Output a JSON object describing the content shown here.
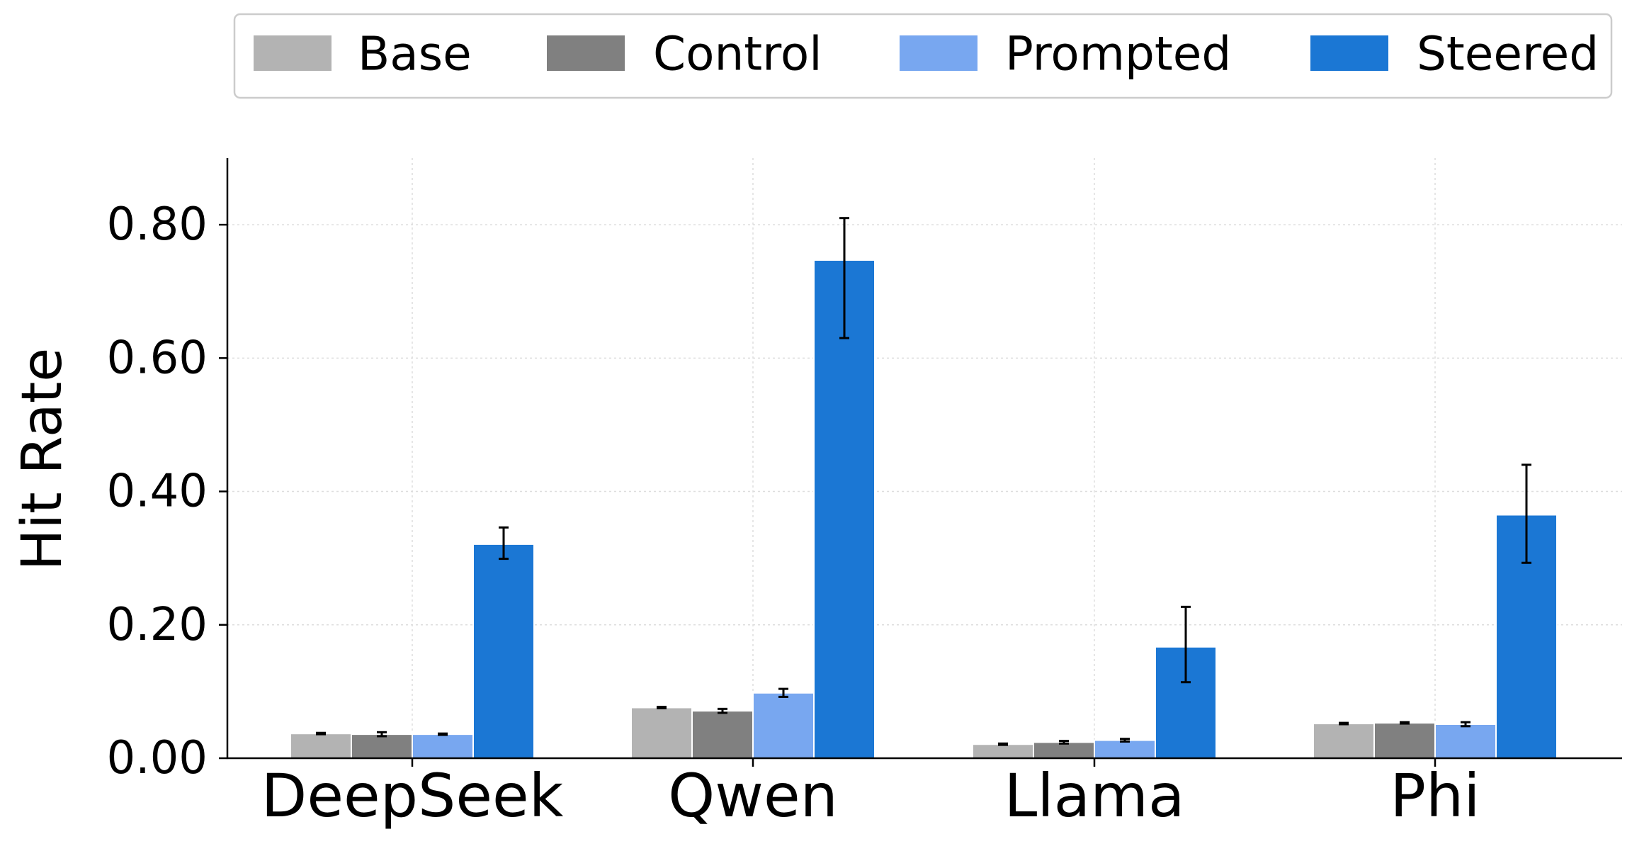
{
  "chart_data": {
    "type": "bar",
    "title": "",
    "xlabel": "",
    "ylabel": "Hit Rate",
    "ylim": [
      0,
      0.9
    ],
    "yticks": [
      0.0,
      0.2,
      0.4,
      0.6,
      0.8
    ],
    "ytick_labels": [
      "0.00",
      "0.20",
      "0.40",
      "0.60",
      "0.80"
    ],
    "grid": true,
    "legend_position": "top",
    "categories": [
      "DeepSeek",
      "Qwen",
      "Llama",
      "Phi"
    ],
    "series": [
      {
        "name": "Base",
        "color": "#b3b3b3",
        "values": [
          0.037,
          0.076,
          0.021,
          0.052
        ],
        "error_low": [
          0.036,
          0.075,
          0.02,
          0.051
        ],
        "error_high": [
          0.038,
          0.077,
          0.022,
          0.053
        ]
      },
      {
        "name": "Control",
        "color": "#808080",
        "values": [
          0.036,
          0.071,
          0.024,
          0.053
        ],
        "error_low": [
          0.033,
          0.068,
          0.022,
          0.052
        ],
        "error_high": [
          0.039,
          0.074,
          0.026,
          0.054
        ]
      },
      {
        "name": "Prompted",
        "color": "#78a7f0",
        "values": [
          0.036,
          0.098,
          0.027,
          0.051
        ],
        "error_low": [
          0.035,
          0.092,
          0.025,
          0.048
        ],
        "error_high": [
          0.037,
          0.104,
          0.029,
          0.054
        ]
      },
      {
        "name": "Steered",
        "color": "#1b77d4",
        "values": [
          0.321,
          0.747,
          0.167,
          0.365
        ],
        "error_low": [
          0.299,
          0.63,
          0.114,
          0.293
        ],
        "error_high": [
          0.346,
          0.81,
          0.227,
          0.44
        ]
      }
    ]
  }
}
